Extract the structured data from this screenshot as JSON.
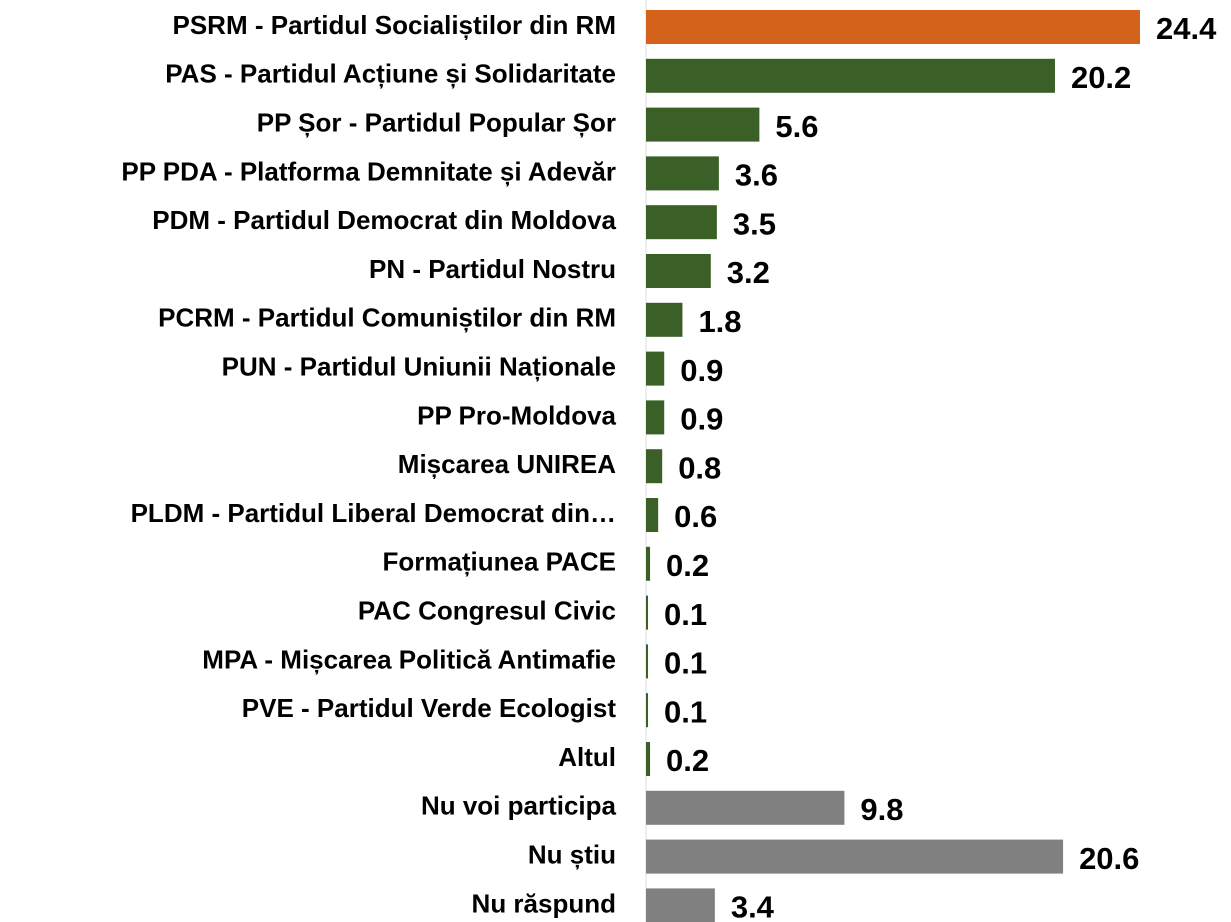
{
  "chart_data": {
    "type": "bar",
    "orientation": "horizontal",
    "categories": [
      "PSRM - Partidul Socialiștilor din RM",
      "PAS - Partidul Acțiune și Solidaritate",
      "PP Șor - Partidul Popular Șor",
      "PP PDA - Platforma Demnitate și Adevăr",
      "PDM - Partidul Democrat din Moldova",
      "PN - Partidul Nostru",
      "PCRM - Partidul Comuniștilor din RM",
      "PUN - Partidul Uniunii Naționale",
      "PP Pro-Moldova",
      "Mișcarea UNIREA",
      "PLDM - Partidul Liberal Democrat din…",
      "Formațiunea PACE",
      "PAC Congresul Civic",
      "MPA - Mișcarea Politică Antimafie",
      "PVE - Partidul Verde Ecologist",
      "Altul",
      "Nu voi participa",
      "Nu știu",
      "Nu răspund"
    ],
    "values": [
      24.4,
      20.2,
      5.6,
      3.6,
      3.5,
      3.2,
      1.8,
      0.9,
      0.9,
      0.8,
      0.6,
      0.2,
      0.1,
      0.1,
      0.1,
      0.2,
      9.8,
      20.6,
      3.4
    ],
    "colors": [
      "#d4621a",
      "#3a5f27",
      "#3a5f27",
      "#3a5f27",
      "#3a5f27",
      "#3a5f27",
      "#3a5f27",
      "#3a5f27",
      "#3a5f27",
      "#3a5f27",
      "#3a5f27",
      "#3a5f27",
      "#3a5f27",
      "#3a5f27",
      "#3a5f27",
      "#3a5f27",
      "#808080",
      "#808080",
      "#808080"
    ]
  }
}
